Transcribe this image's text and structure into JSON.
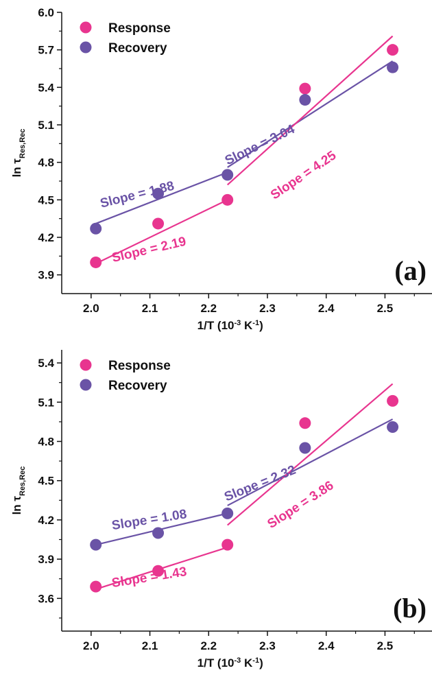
{
  "colors": {
    "response": "#e8358f",
    "recovery": "#6a53a6",
    "axis": "#111111"
  },
  "chart_data": [
    {
      "type": "scatter",
      "panel_label": "(a)",
      "xlabel_main": "1/T (10",
      "xlabel_sup": "-3",
      "xlabel_unit": " K",
      "xlabel_sup2": "-1",
      "xlabel_end": ")",
      "ylabel_main": "ln τ",
      "ylabel_sub": "Res,Rec",
      "xlim": [
        1.95,
        2.58
      ],
      "ylim": [
        3.75,
        6.0
      ],
      "xticks": [
        "2.0",
        "2.1",
        "2.2",
        "2.3",
        "2.4",
        "2.5"
      ],
      "yticks": [
        "3.9",
        "4.2",
        "4.5",
        "4.8",
        "5.1",
        "5.4",
        "5.7",
        "6.0"
      ],
      "legend_position": "top-left",
      "series": [
        {
          "name": "Response",
          "color_key": "response",
          "x": [
            2.008,
            2.114,
            2.232,
            2.364,
            2.513
          ],
          "y": [
            4.0,
            4.31,
            4.5,
            5.39,
            5.7
          ]
        },
        {
          "name": "Recovery",
          "color_key": "recovery",
          "x": [
            2.008,
            2.114,
            2.232,
            2.364,
            2.513
          ],
          "y": [
            4.27,
            4.55,
            4.7,
            5.3,
            5.56
          ]
        }
      ],
      "fits": [
        {
          "series": "Response",
          "x": [
            2.008,
            2.232
          ],
          "y": [
            3.99,
            4.5
          ],
          "label": "Slope = 2.19",
          "label_x": 2.1,
          "label_y": 4.07,
          "angle": -13
        },
        {
          "series": "Recovery",
          "x": [
            2.008,
            2.232
          ],
          "y": [
            4.31,
            4.72
          ],
          "label": "Slope = 1.88",
          "label_x": 2.08,
          "label_y": 4.51,
          "angle": -14
        },
        {
          "series": "Recovery",
          "x": [
            2.232,
            2.513
          ],
          "y": [
            4.76,
            5.61
          ],
          "label": "Slope = 3.04",
          "label_x": 2.29,
          "label_y": 4.91,
          "angle": -26
        },
        {
          "series": "Response",
          "x": [
            2.232,
            2.513
          ],
          "y": [
            4.62,
            5.81
          ],
          "label": "Slope = 4.25",
          "label_x": 2.365,
          "label_y": 4.67,
          "angle": -34
        }
      ]
    },
    {
      "type": "scatter",
      "panel_label": "(b)",
      "xlabel_main": "1/T (10",
      "xlabel_sup": "-3",
      "xlabel_unit": " K",
      "xlabel_sup2": "-1",
      "xlabel_end": ")",
      "ylabel_main": "ln τ",
      "ylabel_sub": "Res,Rec",
      "xlim": [
        1.95,
        2.58
      ],
      "ylim": [
        3.35,
        5.5
      ],
      "xticks": [
        "2.0",
        "2.1",
        "2.2",
        "2.3",
        "2.4",
        "2.5"
      ],
      "yticks": [
        "3.6",
        "3.9",
        "4.2",
        "4.5",
        "4.8",
        "5.1",
        "5.4"
      ],
      "legend_position": "top-left",
      "series": [
        {
          "name": "Response",
          "color_key": "response",
          "x": [
            2.008,
            2.114,
            2.232,
            2.364,
            2.513
          ],
          "y": [
            3.69,
            3.81,
            4.01,
            4.94,
            5.11
          ]
        },
        {
          "name": "Recovery",
          "color_key": "recovery",
          "x": [
            2.008,
            2.114,
            2.232,
            2.364,
            2.513
          ],
          "y": [
            4.01,
            4.1,
            4.25,
            4.75,
            4.91
          ]
        }
      ],
      "fits": [
        {
          "series": "Response",
          "x": [
            2.008,
            2.232
          ],
          "y": [
            3.67,
            3.99
          ],
          "label": "Slope = 1.43",
          "label_x": 2.1,
          "label_y": 3.73,
          "angle": -9
        },
        {
          "series": "Recovery",
          "x": [
            2.008,
            2.232
          ],
          "y": [
            4.01,
            4.25
          ],
          "label": "Slope = 1.08",
          "label_x": 2.1,
          "label_y": 4.17,
          "angle": -9
        },
        {
          "series": "Recovery",
          "x": [
            2.232,
            2.513
          ],
          "y": [
            4.31,
            4.97
          ],
          "label": "Slope = 2.32",
          "label_x": 2.29,
          "label_y": 4.45,
          "angle": -22
        },
        {
          "series": "Response",
          "x": [
            2.232,
            2.513
          ],
          "y": [
            4.16,
            5.24
          ],
          "label": "Slope = 3.86",
          "label_x": 2.36,
          "label_y": 4.29,
          "angle": -33
        }
      ]
    }
  ]
}
